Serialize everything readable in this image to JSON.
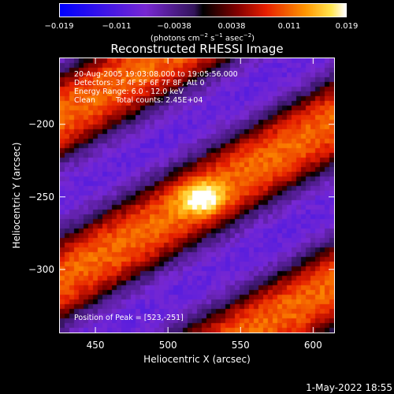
{
  "chart_data": {
    "type": "heatmap",
    "title": "Reconstructed RHESSI Image",
    "xlabel": "Heliocentric X (arcsec)",
    "ylabel": "Heliocentric Y (arcsec)",
    "xlim": [
      425,
      615
    ],
    "ylim": [
      -344,
      -154
    ],
    "xticks": [
      450,
      500,
      550,
      600
    ],
    "yticks": [
      -200,
      -250,
      -300
    ],
    "colorbar": {
      "range": [
        -0.019,
        0.019
      ],
      "tick_values": [
        -0.019,
        -0.011,
        -0.0038,
        0.0038,
        0.011,
        0.019
      ],
      "tick_labels": [
        "−0.019",
        "−0.011",
        "−0.0038",
        "0.0038",
        "0.011",
        "0.019"
      ],
      "unit_prefix": "(photons cm",
      "unit_exp1": "−2",
      "unit_mid1": " s",
      "unit_exp2": "−1",
      "unit_mid2": " asec",
      "unit_exp3": "−2",
      "unit_suffix": ")",
      "colormap": "blue-purple-black-red-yellow-white"
    },
    "peak": {
      "x": 523,
      "y": -251,
      "value": 0.019
    },
    "stripe_direction_deg": 30,
    "annotations": {
      "time_range": "20-Aug-2005 19:03:08.000 to 19:05:56.000",
      "detectors": "Detectors: 3F 4F 5F 6F 7F 8F, Att 0",
      "energy_range": "Energy Range: 6.0 - 12.0 keV",
      "clean_label": "Clean",
      "total_counts": "Total counts: 2.45E+04",
      "peak_position": "Position of Peak = [523,-251]"
    }
  },
  "footer": {
    "timestamp": "1-May-2022 18:55"
  }
}
